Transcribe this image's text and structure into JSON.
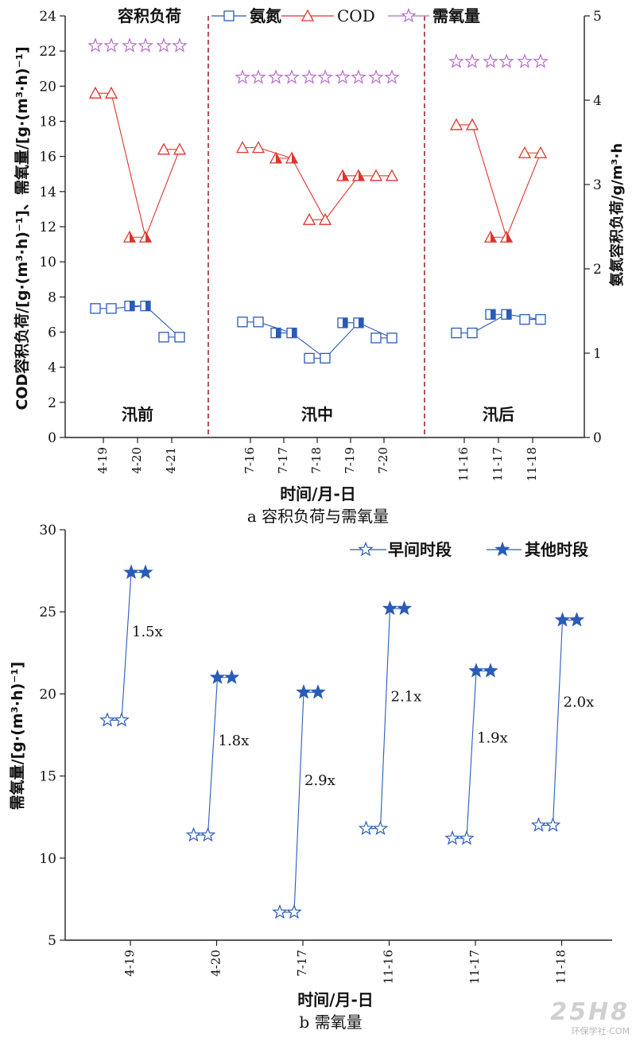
{
  "chart_data": [
    {
      "type": "line",
      "title": "a 容积负荷与需氧量",
      "xlabel": "时间/月-日",
      "ylabel_left": "COD容积负荷/[g·(m³·h)⁻¹]、需氧量/[g·(m³·h)⁻¹]",
      "ylabel_right": "氨氮容积负荷/g/m³·h",
      "legend_title": "容积负荷",
      "legend_position": "top",
      "ylim_left": [
        0,
        24
      ],
      "ylim_right": [
        0,
        5
      ],
      "yticks_left": [
        "0",
        "2",
        "4",
        "6",
        "8",
        "10",
        "12",
        "14",
        "16",
        "18",
        "20",
        "22",
        "24"
      ],
      "yticks_right": [
        "0",
        "1",
        "2",
        "3",
        "4",
        "5"
      ],
      "categories": [
        "4-19",
        "4-20",
        "4-21",
        "7-16",
        "7-17",
        "7-18",
        "7-19",
        "7-20",
        "11-16",
        "11-17",
        "11-18"
      ],
      "periods": [
        {
          "label": "汛前",
          "categories": [
            "4-19",
            "4-20",
            "4-21"
          ]
        },
        {
          "label": "汛中",
          "categories": [
            "7-16",
            "7-17",
            "7-18",
            "7-19",
            "7-20"
          ]
        },
        {
          "label": "汛后",
          "categories": [
            "11-16",
            "11-17",
            "11-18"
          ]
        }
      ],
      "series": [
        {
          "name": "氨氮",
          "axis": "right",
          "color": "#2a5bb8",
          "marker": "square",
          "values": [
            1.53,
            1.56,
            1.19,
            1.37,
            1.24,
            0.94,
            1.36,
            1.18,
            1.24,
            1.46,
            1.4
          ]
        },
        {
          "name": "COD",
          "axis": "left",
          "color": "#e0332a",
          "marker": "triangle",
          "values": [
            19.6,
            11.4,
            16.4,
            16.5,
            15.9,
            12.4,
            14.9,
            14.9,
            17.8,
            11.4,
            16.2
          ]
        },
        {
          "name": "需氧量",
          "axis": "left",
          "color": "#b46ec8",
          "marker": "star",
          "values": [
            22.3,
            22.3,
            22.3,
            20.5,
            20.5,
            20.5,
            20.5,
            20.5,
            21.4,
            21.4,
            21.4
          ]
        }
      ]
    },
    {
      "type": "line",
      "title": "b 需氧量",
      "xlabel": "时间/月-日",
      "ylabel": "需氧量/[g·(m³·h)⁻¹]",
      "legend_position": "top-right",
      "ylim": [
        5,
        30
      ],
      "yticks": [
        "5",
        "10",
        "15",
        "20",
        "25",
        "30"
      ],
      "categories": [
        "4-19",
        "4-20",
        "7-17",
        "11-16",
        "11-17",
        "11-18"
      ],
      "series": [
        {
          "name": "早间时段",
          "color": "#2a5bb8",
          "marker": "star-open",
          "values": [
            18.4,
            11.4,
            6.7,
            11.8,
            11.2,
            12.0
          ]
        },
        {
          "name": "其他时段",
          "color": "#2a5bb8",
          "marker": "star-filled",
          "values": [
            27.4,
            21.0,
            20.1,
            25.2,
            21.4,
            24.5
          ]
        }
      ],
      "ratio_labels": [
        "1.5x",
        "1.8x",
        "2.9x",
        "2.1x",
        "1.9x",
        "2.0x"
      ]
    }
  ],
  "watermark": {
    "logo": "25H8",
    "text": "环保学社·COM"
  }
}
